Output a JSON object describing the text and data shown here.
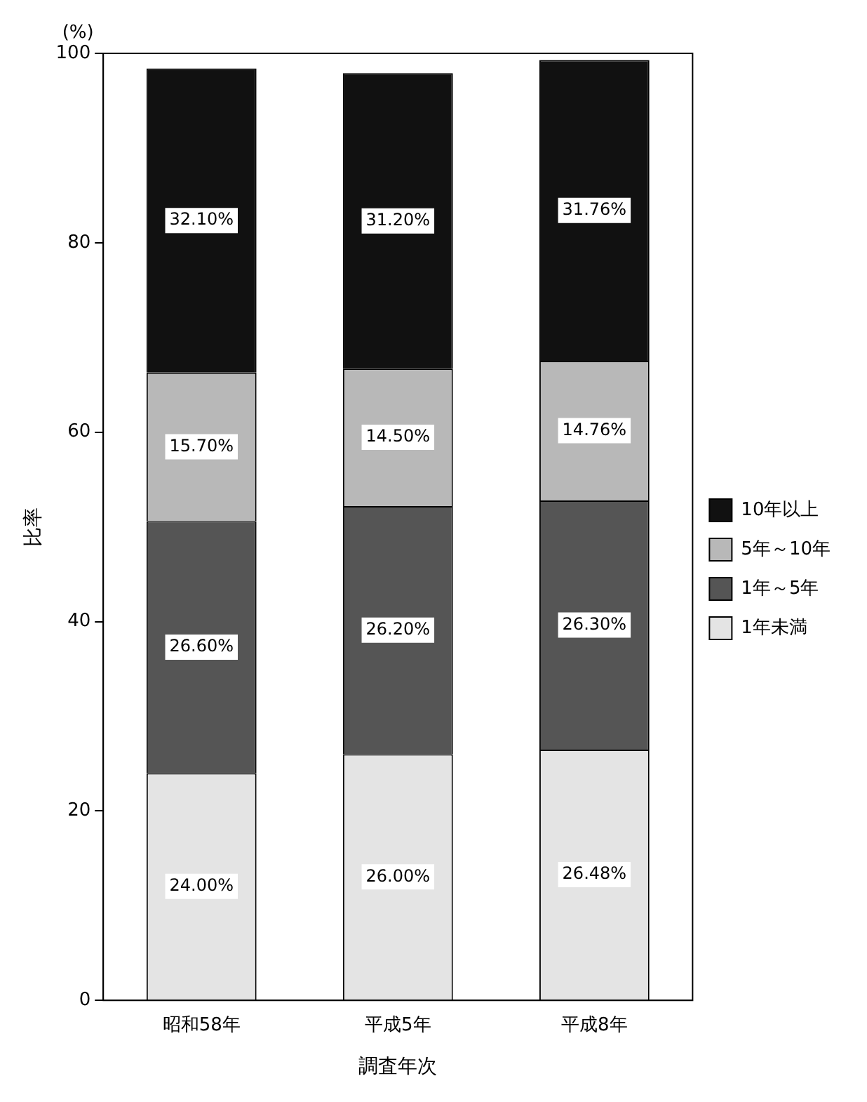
{
  "chart_data": {
    "type": "bar",
    "stacked": true,
    "xlabel": "調査年次",
    "ylabel": "比率",
    "annotations": [
      "(%)"
    ],
    "categories": [
      "昭和58年",
      "平成5年",
      "平成8年"
    ],
    "series": [
      {
        "name": "1年未満",
        "color": "#e4e4e4",
        "values": [
          24.0,
          26.0,
          26.48
        ],
        "value_labels": [
          "24.00%",
          "26.00%",
          "26.48%"
        ]
      },
      {
        "name": "1年～5年",
        "color": "#555555",
        "values": [
          26.6,
          26.2,
          26.3
        ],
        "value_labels": [
          "26.60%",
          "26.20%",
          "26.30%"
        ]
      },
      {
        "name": "5年～10年",
        "color": "#b8b8b8",
        "values": [
          15.7,
          14.5,
          14.76
        ],
        "value_labels": [
          "15.70%",
          "14.50%",
          "14.76%"
        ]
      },
      {
        "name": "10年以上",
        "color": "#111111",
        "values": [
          32.1,
          31.2,
          31.76
        ],
        "value_labels": [
          "32.10%",
          "31.20%",
          "31.76%"
        ]
      }
    ],
    "ylim": [
      0,
      100
    ],
    "yticks": [
      0,
      20,
      40,
      60,
      80,
      100
    ],
    "legend": "right"
  }
}
